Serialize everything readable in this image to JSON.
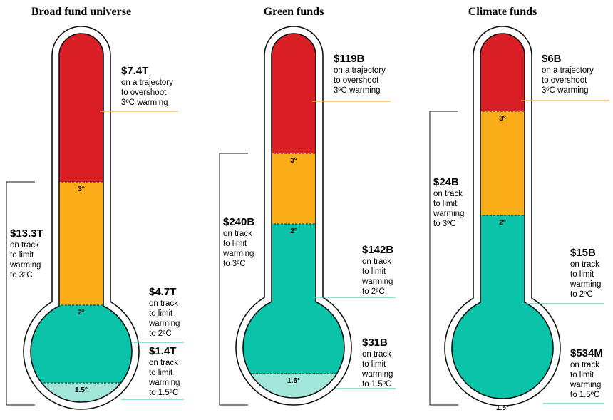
{
  "colors": {
    "red": "#d91e26",
    "orange": "#fbac19",
    "teal": "#0ac3a8",
    "light_teal": "#a2e5d9",
    "outline": "#111111",
    "leader_orange": "#f5b53c",
    "leader_teal": "#52c7b3"
  },
  "chart_data": [
    {
      "type": "thermometer",
      "title": "Broad fund universe",
      "segments": [
        {
          "key": "3C",
          "amount": "$7.4T",
          "lines": [
            "on a trajectory",
            "to overshoot",
            "3ºC warming"
          ]
        },
        {
          "key": "2-3C",
          "amount": "$4.7T",
          "lines": [
            "on track",
            "to limit",
            "warming",
            "to 2ºC"
          ]
        },
        {
          "key": "1.5-2C",
          "amount": "$1.4T",
          "lines": [
            "on track",
            "to limit",
            "warming",
            "to 1.5ºC"
          ]
        }
      ],
      "bracket": {
        "amount": "$13.3T",
        "lines": [
          "on track",
          "to limit",
          "warming",
          "to 3ºC"
        ]
      },
      "ticks": [
        "3°",
        "2°",
        "1.5°"
      ]
    },
    {
      "type": "thermometer",
      "title": "Green funds",
      "segments": [
        {
          "key": "3C",
          "amount": "$119B",
          "lines": [
            "on a trajectory",
            "to overshoot",
            "3ºC warming"
          ]
        },
        {
          "key": "2-3C",
          "amount": "$142B",
          "lines": [
            "on track",
            "to limit",
            "warming",
            "to 2ºC"
          ]
        },
        {
          "key": "1.5-2C",
          "amount": "$31B",
          "lines": [
            "on track",
            "to limit",
            "warming",
            "to 1.5ºC"
          ]
        }
      ],
      "bracket": {
        "amount": "$240B",
        "lines": [
          "on track",
          "to limit",
          "warming",
          "to 3ºC"
        ]
      },
      "ticks": [
        "3°",
        "2°",
        "1.5°"
      ]
    },
    {
      "type": "thermometer",
      "title": "Climate funds",
      "segments": [
        {
          "key": "3C",
          "amount": "$6B",
          "lines": [
            "on a trajectory",
            "to overshoot",
            "3ºC warming"
          ]
        },
        {
          "key": "2-3C",
          "amount": "$15B",
          "lines": [
            "on track",
            "to limit",
            "warming",
            "to 2ºC"
          ]
        },
        {
          "key": "1.5-2C",
          "amount": "$534M",
          "lines": [
            "on track",
            "to limit",
            "warming",
            "to 1.5ºC"
          ]
        }
      ],
      "bracket": {
        "amount": "$24B",
        "lines": [
          "on track",
          "to limit",
          "warming",
          "to 3ºC"
        ]
      },
      "ticks": [
        "3°",
        "2°",
        "1.5°"
      ]
    }
  ]
}
